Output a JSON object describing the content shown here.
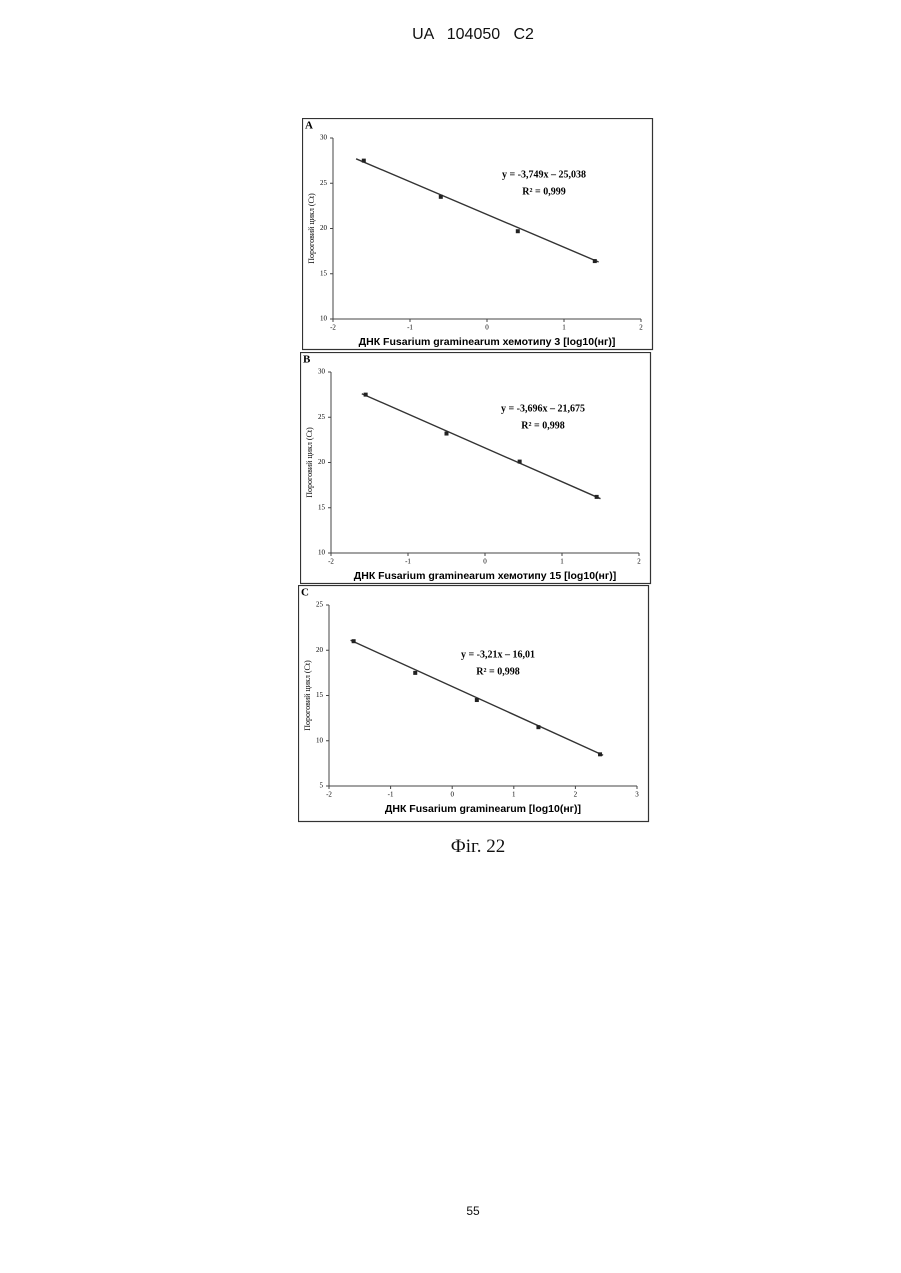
{
  "header": "UA   104050   C2",
  "caption": "Фіг. 22",
  "page_number": "55",
  "chart_data": [
    {
      "type": "scatter",
      "panel_label": "A",
      "ylabel": "Пороговий цикл (Ct)",
      "xlabel": "ДНК Fusarium graminearum хемотипу 3 [log10(нг)]",
      "equation": "y = -3,749x – 25,038",
      "r_squared": "R² = 0,999",
      "x": [
        -1.6,
        -0.6,
        0.4,
        1.4
      ],
      "values": [
        27.5,
        23.5,
        19.7,
        16.4
      ],
      "trendline": {
        "x": [
          -1.7,
          1.45
        ],
        "values": [
          27.7,
          16.3
        ]
      },
      "color": "#222222",
      "xlim": [
        -2,
        2
      ],
      "xticks": [
        -2,
        -1,
        0,
        1,
        2
      ],
      "ylim": [
        10,
        30
      ],
      "yticks": [
        10,
        15,
        20,
        25,
        30
      ]
    },
    {
      "type": "scatter",
      "panel_label": "B",
      "ylabel": "Пороговий цикл (Ct)",
      "xlabel": "ДНК Fusarium graminearum хемотипу 15 [log10(нг)]",
      "equation": "y = -3,696x – 21,675",
      "r_squared": "R² = 0,998",
      "x": [
        -1.55,
        -0.5,
        0.45,
        1.45
      ],
      "values": [
        27.5,
        23.2,
        20.1,
        16.2
      ],
      "trendline": {
        "x": [
          -1.6,
          1.5
        ],
        "values": [
          27.6,
          16.0
        ]
      },
      "color": "#222222",
      "xlim": [
        -2,
        2
      ],
      "xticks": [
        -2,
        -1,
        0,
        1,
        2
      ],
      "ylim": [
        10,
        30
      ],
      "yticks": [
        10,
        15,
        20,
        25,
        30
      ]
    },
    {
      "type": "scatter",
      "panel_label": "C",
      "ylabel": "Пороговий цикл (Ct)",
      "xlabel": "ДНК Fusarium graminearum [log10(нг)]",
      "equation": "y = -3,21x – 16,01",
      "r_squared": "R² = 0,998",
      "x": [
        -1.6,
        -0.6,
        0.4,
        1.4,
        2.4
      ],
      "values": [
        21,
        17.5,
        14.5,
        11.5,
        8.5
      ],
      "trendline": {
        "x": [
          -1.65,
          2.45
        ],
        "values": [
          21.1,
          8.4
        ]
      },
      "color": "#222222",
      "xlim": [
        -2,
        3
      ],
      "xticks": [
        -2,
        -1,
        0,
        1,
        2,
        3
      ],
      "ylim": [
        5,
        25
      ],
      "yticks": [
        5,
        10,
        15,
        20,
        25
      ]
    }
  ]
}
